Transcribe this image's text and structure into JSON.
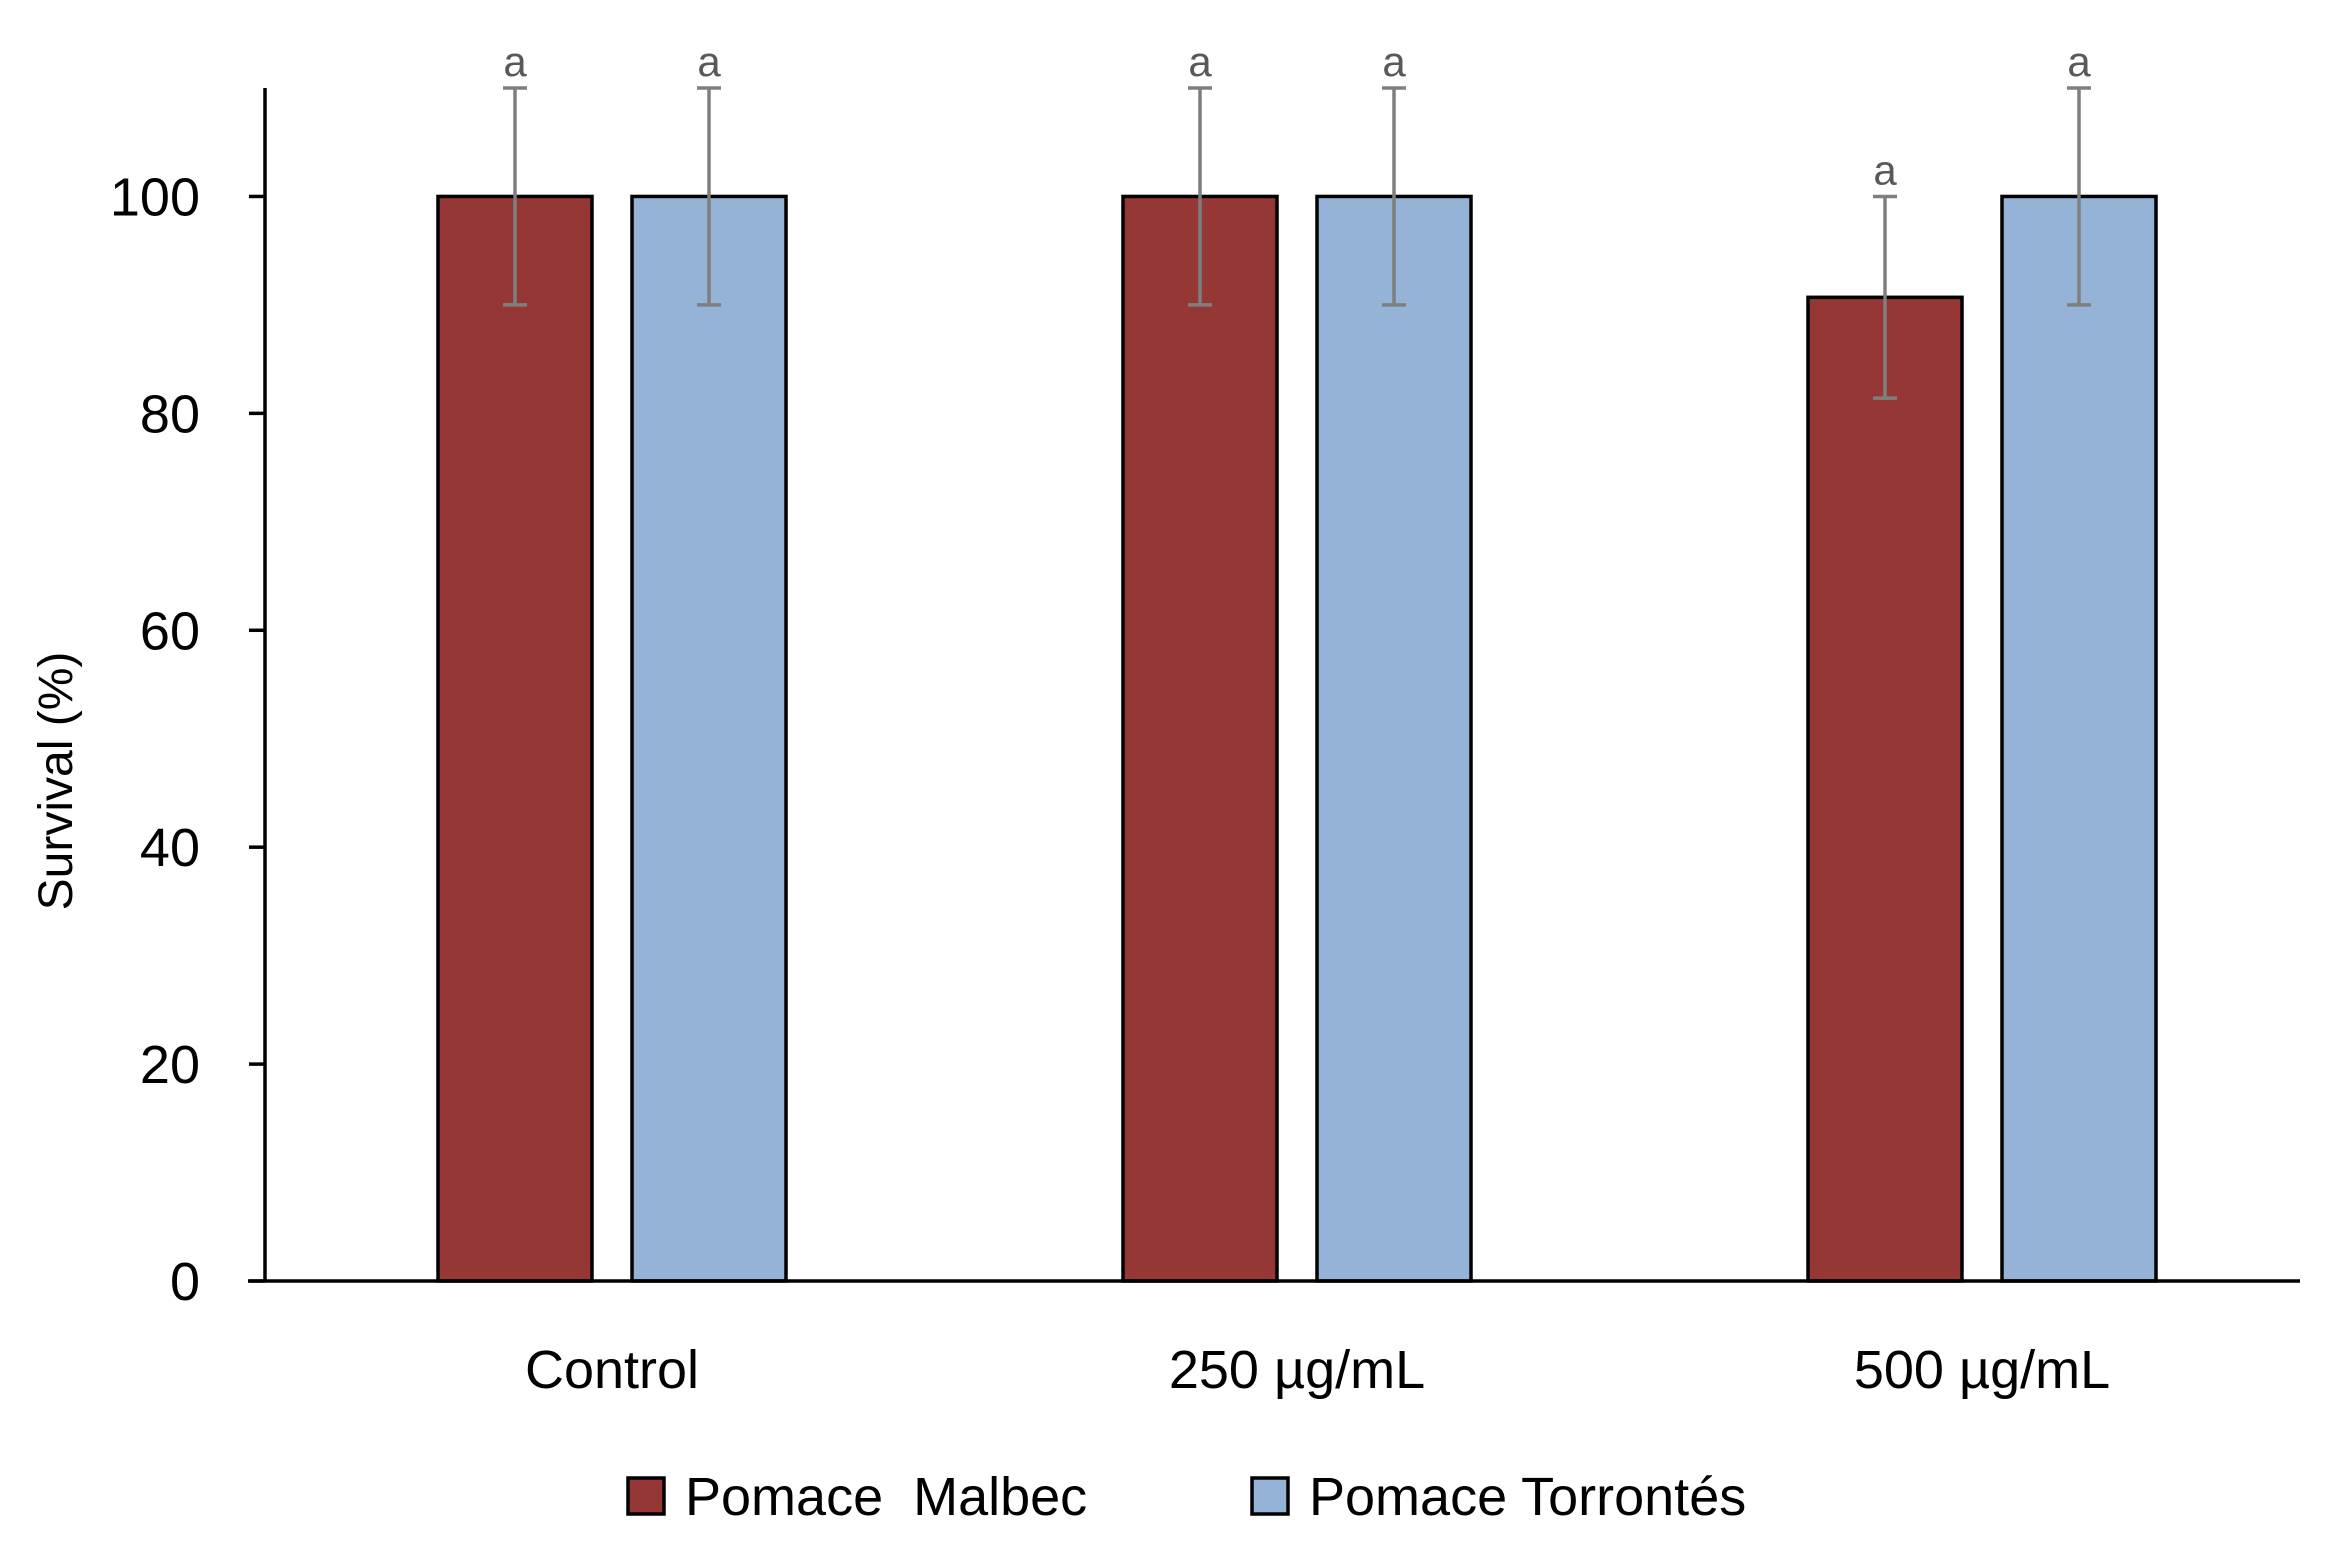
{
  "chart_data": {
    "type": "bar",
    "title": "",
    "xlabel": "",
    "ylabel": "Survival (%)",
    "ylim": [
      0,
      110
    ],
    "yticks": [
      "0",
      "20",
      "40",
      "60",
      "80",
      "100"
    ],
    "categories": [
      "Control",
      "250 µg/mL",
      "500 µg/mL"
    ],
    "series": [
      {
        "name": "Pomace  Malbec",
        "color": "#953735",
        "values": [
          100,
          100,
          90.7
        ],
        "errors": [
          10,
          10,
          9.3
        ],
        "significance": [
          "a",
          "a",
          "a"
        ]
      },
      {
        "name": "Pomace Torrontés",
        "color": "#95B3D7",
        "values": [
          100,
          100,
          100
        ],
        "errors": [
          10,
          10,
          10
        ],
        "significance": [
          "a",
          "a",
          "a"
        ]
      }
    ],
    "legend_position": "bottom",
    "grid": false
  }
}
